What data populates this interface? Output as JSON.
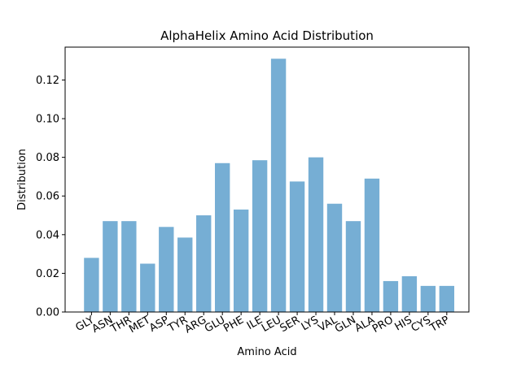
{
  "chart_data": {
    "type": "bar",
    "title": "AlphaHelix Amino Acid Distribution",
    "xlabel": "Amino Acid",
    "ylabel": "Distribution",
    "categories": [
      "GLY",
      "ASN",
      "THR",
      "MET",
      "ASP",
      "TYR",
      "ARG",
      "GLU",
      "PHE",
      "ILE",
      "LEU",
      "SER",
      "LYS",
      "VAL",
      "GLN",
      "ALA",
      "PRO",
      "HIS",
      "CYS",
      "TRP"
    ],
    "values": [
      0.028,
      0.047,
      0.047,
      0.025,
      0.044,
      0.0385,
      0.05,
      0.077,
      0.053,
      0.0785,
      0.131,
      0.0675,
      0.08,
      0.056,
      0.047,
      0.069,
      0.016,
      0.0185,
      0.0135,
      0.0135
    ],
    "ylim": [
      0,
      0.137
    ],
    "yticks": [
      0.0,
      0.02,
      0.04,
      0.06,
      0.08,
      0.1,
      0.12
    ],
    "ytick_labels": [
      "0.00",
      "0.02",
      "0.04",
      "0.06",
      "0.08",
      "0.10",
      "0.12"
    ],
    "bar_color": "#76aed4",
    "grid": false,
    "legend": "none"
  }
}
